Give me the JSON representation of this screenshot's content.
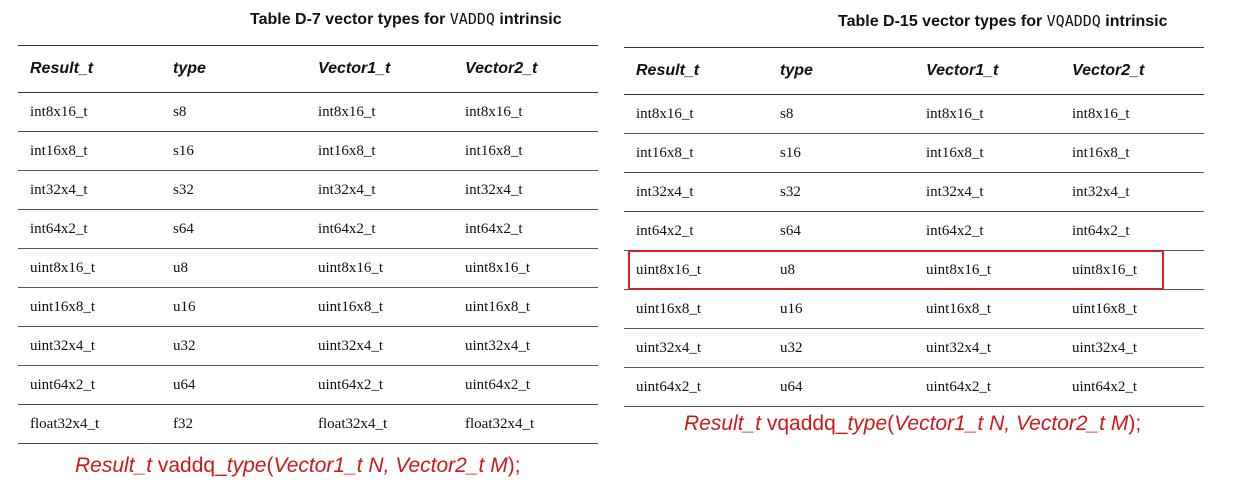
{
  "left": {
    "caption_prefix": "Table D-7 vector types for ",
    "caption_code": "VADDQ",
    "caption_suffix": " intrinsic",
    "headers": [
      "Result_t",
      "type",
      "Vector1_t",
      "Vector2_t"
    ],
    "rows": [
      [
        "int8x16_t",
        "s8",
        "int8x16_t",
        "int8x16_t"
      ],
      [
        "int16x8_t",
        "s16",
        "int16x8_t",
        "int16x8_t"
      ],
      [
        "int32x4_t",
        "s32",
        "int32x4_t",
        "int32x4_t"
      ],
      [
        "int64x2_t",
        "s64",
        "int64x2_t",
        "int64x2_t"
      ],
      [
        "uint8x16_t",
        "u8",
        "uint8x16_t",
        "uint8x16_t"
      ],
      [
        "uint16x8_t",
        "u16",
        "uint16x8_t",
        "uint16x8_t"
      ],
      [
        "uint32x4_t",
        "u32",
        "uint32x4_t",
        "uint32x4_t"
      ],
      [
        "uint64x2_t",
        "u64",
        "uint64x2_t",
        "uint64x2_t"
      ],
      [
        "float32x4_t",
        "f32",
        "float32x4_t",
        "float32x4_t"
      ]
    ],
    "signature": {
      "result": "Result_t",
      "name": " vaddq_",
      "type": "type",
      "open": "(",
      "arg1": "Vector1_t N, Vector2_t M",
      "close": ");"
    }
  },
  "right": {
    "caption_prefix": "Table D-15 vector types for ",
    "caption_code": "VQADDQ",
    "caption_suffix": " intrinsic",
    "headers": [
      "Result_t",
      "type",
      "Vector1_t",
      "Vector2_t"
    ],
    "rows": [
      [
        "int8x16_t",
        "s8",
        "int8x16_t",
        "int8x16_t"
      ],
      [
        "int16x8_t",
        "s16",
        "int16x8_t",
        "int16x8_t"
      ],
      [
        "int32x4_t",
        "s32",
        "int32x4_t",
        "int32x4_t"
      ],
      [
        "int64x2_t",
        "s64",
        "int64x2_t",
        "int64x2_t"
      ],
      [
        "uint8x16_t",
        "u8",
        "uint8x16_t",
        "uint8x16_t"
      ],
      [
        "uint16x8_t",
        "u16",
        "uint16x8_t",
        "uint16x8_t"
      ],
      [
        "uint32x4_t",
        "u32",
        "uint32x4_t",
        "uint32x4_t"
      ],
      [
        "uint64x2_t",
        "u64",
        "uint64x2_t",
        "uint64x2_t"
      ]
    ],
    "highlighted_row": 4,
    "signature": {
      "result": "Result_t",
      "name": " vqaddq_",
      "type": "type",
      "open": "(",
      "arg1": "Vector1_t N, Vector2_t M",
      "close": ");"
    }
  },
  "colors": {
    "highlight": "#d62020",
    "signature": "#d01818"
  }
}
